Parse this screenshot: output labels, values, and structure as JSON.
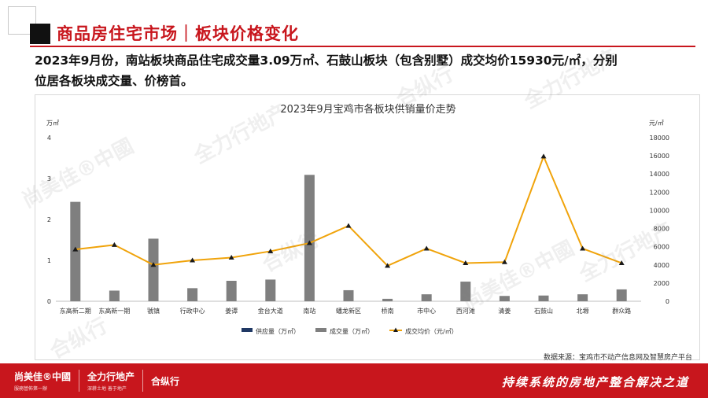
{
  "header": {
    "title": "商品房住宅市场｜板块价格变化"
  },
  "summary": {
    "line1": "2023年9月份，南站板块商品住宅成交量3.09万㎡、石鼓山板块（包含别墅）成交均价15930元/㎡，分别",
    "line2": "位居各板块成交量、价榜首。"
  },
  "chart_data": {
    "type": "bar",
    "title": "2023年9月宝鸡市各板块供销量价走势",
    "categories": [
      "东高新二期",
      "东高新一期",
      "虢镇",
      "行政中心",
      "姜谭",
      "金台大道",
      "南站",
      "蟠龙新区",
      "桥南",
      "市中心",
      "西河滩",
      "清姜",
      "石鼓山",
      "北塬",
      "群众路"
    ],
    "series": [
      {
        "name": "供应量（万㎡）",
        "type": "bar",
        "axis": "left",
        "color": "#1f3864",
        "values": [
          0,
          0,
          0,
          0,
          0,
          0,
          0,
          0,
          0,
          0,
          0,
          0,
          0,
          0,
          0
        ]
      },
      {
        "name": "成交量（万㎡）",
        "type": "bar",
        "axis": "left",
        "color": "#7f7f7f",
        "values": [
          2.43,
          0.26,
          1.53,
          0.32,
          0.5,
          0.53,
          3.09,
          0.27,
          0.06,
          0.17,
          0.48,
          0.13,
          0.14,
          0.17,
          0.29
        ]
      },
      {
        "name": "成交均价（元/㎡）",
        "type": "line",
        "axis": "right",
        "color": "#f0a30a",
        "values": [
          5700,
          6200,
          4000,
          4500,
          4800,
          5500,
          6400,
          8300,
          3900,
          5800,
          4200,
          4300,
          15930,
          5800,
          4200
        ]
      }
    ],
    "yleft": {
      "label": "万㎡",
      "range": [
        0,
        4
      ],
      "ticks": [
        0,
        1,
        2,
        3,
        4
      ]
    },
    "yright": {
      "label": "元/㎡",
      "range": [
        0,
        18000
      ],
      "ticks": [
        0,
        2000,
        4000,
        6000,
        8000,
        10000,
        12000,
        14000,
        16000,
        18000
      ]
    },
    "legend_position": "bottom",
    "grid": false
  },
  "source": "数据来源：宝鸡市不动产信息网及智慧房产平台",
  "footer": {
    "logos": [
      {
        "main": "尚美佳®中國",
        "sub": "服務營佈第一辦"
      },
      {
        "main": "全力行地产",
        "sub": "深耕土地 善于地产"
      },
      {
        "main": "合纵行",
        "sub": ""
      }
    ],
    "slogan": "持续系统的房地产整合解决之道"
  },
  "watermarks": [
    "尚美佳®中國",
    "全力行地产",
    "合纵行",
    "尚美佳®中國",
    "全力行地产",
    "合纵行",
    "全力行地产",
    "合纵行"
  ],
  "colors": {
    "brand_red": "#c8161d",
    "bar_gray": "#7f7f7f",
    "line_orange": "#f0a30a",
    "supply_navy": "#1f3864"
  }
}
